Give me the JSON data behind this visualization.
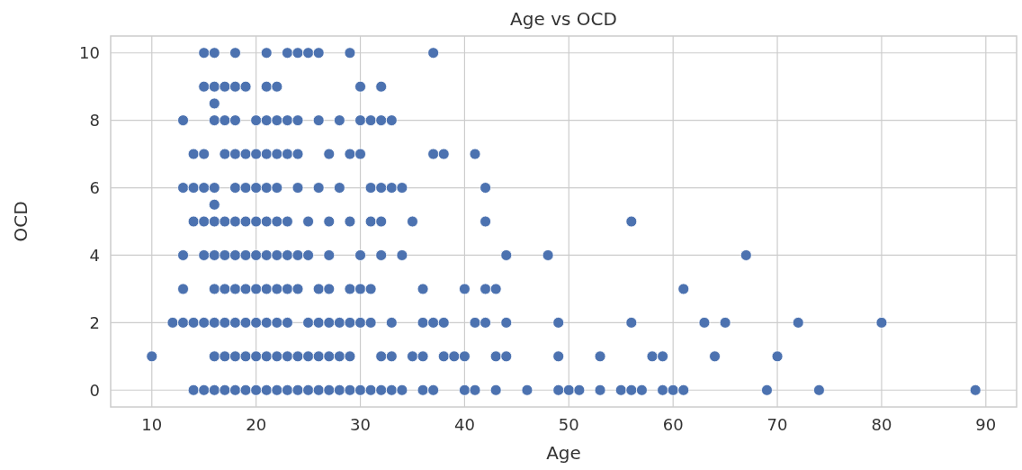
{
  "chart_data": {
    "type": "scatter",
    "title": "Age vs OCD",
    "xlabel": "Age",
    "ylabel": "OCD",
    "xlim": [
      6.05,
      92.95
    ],
    "ylim": [
      -0.5,
      10.5
    ],
    "xticks": [
      10,
      20,
      30,
      40,
      50,
      60,
      70,
      80,
      90
    ],
    "yticks": [
      0,
      2,
      4,
      6,
      8,
      10
    ],
    "grid": true,
    "marker": "circle",
    "series": [
      {
        "color": "#4c72b0",
        "x": [
          14,
          15,
          16,
          17,
          18,
          19,
          20,
          21,
          22,
          23,
          24,
          25,
          26,
          27,
          28,
          29,
          30,
          31,
          32,
          33,
          34,
          36,
          37,
          40,
          41,
          43,
          46,
          49,
          50,
          51,
          53,
          55,
          56,
          57,
          59,
          60,
          61,
          69,
          74,
          89,
          10,
          16,
          17,
          18,
          19,
          20,
          21,
          22,
          23,
          24,
          25,
          26,
          27,
          28,
          29,
          32,
          33,
          35,
          36,
          38,
          39,
          40,
          43,
          44,
          49,
          53,
          58,
          59,
          64,
          70,
          12,
          13,
          14,
          15,
          16,
          17,
          18,
          19,
          20,
          21,
          22,
          23,
          25,
          26,
          27,
          28,
          29,
          30,
          31,
          33,
          36,
          37,
          38,
          41,
          42,
          44,
          49,
          56,
          63,
          65,
          72,
          80,
          13,
          16,
          17,
          18,
          19,
          20,
          21,
          22,
          23,
          24,
          26,
          27,
          29,
          30,
          31,
          36,
          40,
          42,
          43,
          61,
          13,
          15,
          16,
          17,
          18,
          19,
          20,
          21,
          22,
          23,
          24,
          25,
          27,
          30,
          32,
          34,
          44,
          48,
          67,
          14,
          15,
          16,
          17,
          18,
          19,
          20,
          21,
          22,
          23,
          25,
          27,
          29,
          31,
          32,
          35,
          42,
          56,
          16,
          13,
          14,
          15,
          16,
          18,
          19,
          20,
          21,
          22,
          24,
          26,
          28,
          31,
          32,
          33,
          34,
          42,
          14,
          15,
          17,
          18,
          19,
          20,
          21,
          22,
          23,
          24,
          27,
          29,
          30,
          37,
          38,
          41,
          13,
          16,
          17,
          18,
          20,
          21,
          22,
          23,
          24,
          26,
          28,
          30,
          31,
          32,
          33,
          16,
          15,
          16,
          17,
          18,
          19,
          21,
          22,
          30,
          32,
          15,
          16,
          18,
          21,
          23,
          24,
          25,
          26,
          29,
          37
        ],
        "values": [
          0,
          0,
          0,
          0,
          0,
          0,
          0,
          0,
          0,
          0,
          0,
          0,
          0,
          0,
          0,
          0,
          0,
          0,
          0,
          0,
          0,
          0,
          0,
          0,
          0,
          0,
          0,
          0,
          0,
          0,
          0,
          0,
          0,
          0,
          0,
          0,
          0,
          0,
          0,
          0,
          1,
          1,
          1,
          1,
          1,
          1,
          1,
          1,
          1,
          1,
          1,
          1,
          1,
          1,
          1,
          1,
          1,
          1,
          1,
          1,
          1,
          1,
          1,
          1,
          1,
          1,
          1,
          1,
          1,
          1,
          2,
          2,
          2,
          2,
          2,
          2,
          2,
          2,
          2,
          2,
          2,
          2,
          2,
          2,
          2,
          2,
          2,
          2,
          2,
          2,
          2,
          2,
          2,
          2,
          2,
          2,
          2,
          2,
          2,
          2,
          2,
          2,
          3,
          3,
          3,
          3,
          3,
          3,
          3,
          3,
          3,
          3,
          3,
          3,
          3,
          3,
          3,
          3,
          3,
          3,
          3,
          3,
          4,
          4,
          4,
          4,
          4,
          4,
          4,
          4,
          4,
          4,
          4,
          4,
          4,
          4,
          4,
          4,
          4,
          4,
          4,
          5,
          5,
          5,
          5,
          5,
          5,
          5,
          5,
          5,
          5,
          5,
          5,
          5,
          5,
          5,
          5,
          5,
          5,
          5.5,
          6,
          6,
          6,
          6,
          6,
          6,
          6,
          6,
          6,
          6,
          6,
          6,
          6,
          6,
          6,
          6,
          6,
          7,
          7,
          7,
          7,
          7,
          7,
          7,
          7,
          7,
          7,
          7,
          7,
          7,
          7,
          7,
          7,
          8,
          8,
          8,
          8,
          8,
          8,
          8,
          8,
          8,
          8,
          8,
          8,
          8,
          8,
          8,
          8.5,
          9,
          9,
          9,
          9,
          9,
          9,
          9,
          9,
          9,
          10,
          10,
          10,
          10,
          10,
          10,
          10,
          10,
          10,
          10
        ]
      }
    ]
  }
}
